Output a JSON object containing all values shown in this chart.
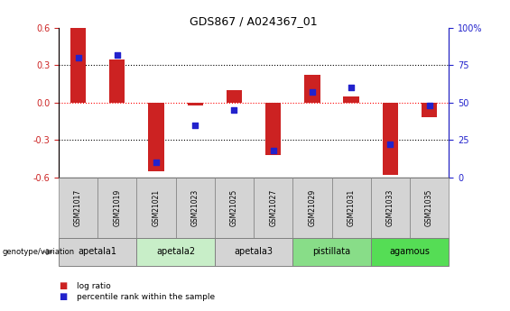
{
  "title": "GDS867 / A024367_01",
  "samples": [
    "GSM21017",
    "GSM21019",
    "GSM21021",
    "GSM21023",
    "GSM21025",
    "GSM21027",
    "GSM21029",
    "GSM21031",
    "GSM21033",
    "GSM21035"
  ],
  "log_ratio": [
    0.6,
    0.35,
    -0.55,
    -0.02,
    0.1,
    -0.42,
    0.22,
    0.05,
    -0.58,
    -0.12
  ],
  "percentile": [
    80,
    82,
    10,
    35,
    45,
    18,
    57,
    60,
    22,
    48
  ],
  "bar_color": "#CC2222",
  "dot_color": "#2222CC",
  "ylim_left": [
    -0.6,
    0.6
  ],
  "ylim_right": [
    0,
    100
  ],
  "yticks_left": [
    -0.6,
    -0.3,
    0.0,
    0.3,
    0.6
  ],
  "yticks_right": [
    0,
    25,
    50,
    75,
    100
  ],
  "ytick_labels_right": [
    "0",
    "25",
    "50",
    "75",
    "100%"
  ],
  "genotype_groups": [
    {
      "label": "apetala1",
      "samples": [
        0,
        1
      ],
      "color": "#d4d4d4"
    },
    {
      "label": "apetala2",
      "samples": [
        2,
        3
      ],
      "color": "#c8eec8"
    },
    {
      "label": "apetala3",
      "samples": [
        4,
        5
      ],
      "color": "#d4d4d4"
    },
    {
      "label": "pistillata",
      "samples": [
        6,
        7
      ],
      "color": "#88dd88"
    },
    {
      "label": "agamous",
      "samples": [
        8,
        9
      ],
      "color": "#55dd55"
    }
  ],
  "sample_box_color": "#d4d4d4",
  "legend_log_ratio": "log ratio",
  "legend_percentile": "percentile rank within the sample",
  "genotype_label": "genotype/variation"
}
